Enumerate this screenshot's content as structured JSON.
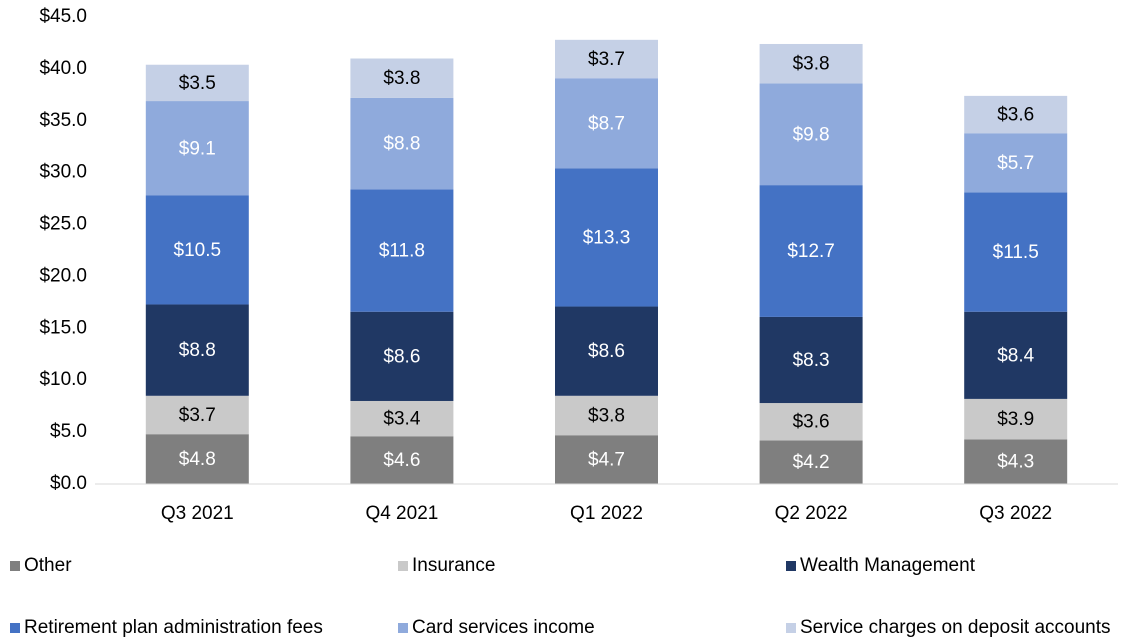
{
  "chart_data": {
    "type": "stacked_bar",
    "categories": [
      "Q3 2021",
      "Q4 2021",
      "Q1 2022",
      "Q2 2022",
      "Q3 2022"
    ],
    "series": [
      {
        "name": "Other",
        "color": "#7f7f7f",
        "label_color": "#ffffff",
        "values": [
          4.8,
          4.6,
          4.7,
          4.2,
          4.3
        ],
        "value_labels": [
          "$4.8",
          "$4.6",
          "$4.7",
          "$4.2",
          "$4.3"
        ]
      },
      {
        "name": "Insurance",
        "color": "#c9c9c9",
        "label_color": "#000000",
        "values": [
          3.7,
          3.4,
          3.8,
          3.6,
          3.9
        ],
        "value_labels": [
          "$3.7",
          "$3.4",
          "$3.8",
          "$3.6",
          "$3.9"
        ]
      },
      {
        "name": "Wealth Management",
        "color": "#203864",
        "label_color": "#ffffff",
        "values": [
          8.8,
          8.6,
          8.6,
          8.3,
          8.4
        ],
        "value_labels": [
          "$8.8",
          "$8.6",
          "$8.6",
          "$8.3",
          "$8.4"
        ]
      },
      {
        "name": "Retirement plan administration fees",
        "color": "#4472c4",
        "label_color": "#ffffff",
        "values": [
          10.5,
          11.8,
          13.3,
          12.7,
          11.5
        ],
        "value_labels": [
          "$10.5",
          "$11.8",
          "$13.3",
          "$12.7",
          "$11.5"
        ]
      },
      {
        "name": "Card services income",
        "color": "#8faadc",
        "label_color": "#ffffff",
        "values": [
          9.1,
          8.8,
          8.7,
          9.8,
          5.7
        ],
        "value_labels": [
          "$9.1",
          "$8.8",
          "$8.7",
          "$9.8",
          "$5.7"
        ]
      },
      {
        "name": "Service charges on deposit accounts",
        "color": "#c5d0e6",
        "label_color": "#000000",
        "values": [
          3.5,
          3.8,
          3.7,
          3.8,
          3.6
        ],
        "value_labels": [
          "$3.5",
          "$3.8",
          "$3.7",
          "$3.8",
          "$3.6"
        ]
      }
    ],
    "ylim": [
      0,
      45
    ],
    "yticks": [
      {
        "value": 0,
        "label": "$0.0"
      },
      {
        "value": 5,
        "label": "$5.0"
      },
      {
        "value": 10,
        "label": "$10.0"
      },
      {
        "value": 15,
        "label": "$15.0"
      },
      {
        "value": 20,
        "label": "$20.0"
      },
      {
        "value": 25,
        "label": "$25.0"
      },
      {
        "value": 30,
        "label": "$30.0"
      },
      {
        "value": 35,
        "label": "$35.0"
      },
      {
        "value": 40,
        "label": "$40.0"
      },
      {
        "value": 45,
        "label": "$45.0"
      }
    ],
    "grid": false,
    "legend": "bottom"
  }
}
